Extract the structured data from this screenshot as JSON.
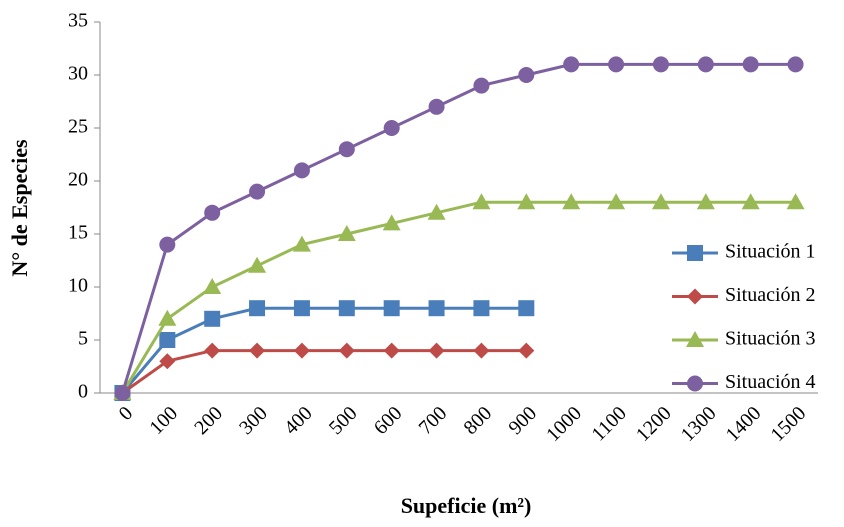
{
  "chart_data": {
    "type": "line",
    "x_label": "Supeficie (m²)",
    "y_label": "N° de Especies",
    "categories": [
      "0",
      "100",
      "200",
      "300",
      "400",
      "500",
      "600",
      "700",
      "800",
      "900",
      "1000",
      "1100",
      "1200",
      "1300",
      "1400",
      "1500"
    ],
    "series": [
      {
        "name": "Situación 1",
        "color": "#4a7ebb",
        "marker": "square",
        "values": [
          0,
          5,
          7,
          8,
          8,
          8,
          8,
          8,
          8,
          8,
          null,
          null,
          null,
          null,
          null,
          null
        ]
      },
      {
        "name": "Situación 2",
        "color": "#be4b48",
        "marker": "diamond",
        "values": [
          0,
          3,
          4,
          4,
          4,
          4,
          4,
          4,
          4,
          4,
          null,
          null,
          null,
          null,
          null,
          null
        ]
      },
      {
        "name": "Situación 3",
        "color": "#98b954",
        "marker": "triangle",
        "values": [
          0,
          7,
          10,
          12,
          14,
          15,
          16,
          17,
          18,
          18,
          18,
          18,
          18,
          18,
          18,
          18
        ]
      },
      {
        "name": "Situación 4",
        "color": "#7d60a0",
        "marker": "circle",
        "values": [
          0,
          14,
          17,
          19,
          21,
          23,
          25,
          27,
          29,
          30,
          31,
          31,
          31,
          31,
          31,
          31
        ]
      }
    ],
    "ylim": [
      0,
      35
    ],
    "yticks": [
      0,
      5,
      10,
      15,
      20,
      25,
      30,
      35
    ],
    "grid": false,
    "legend": "right"
  }
}
